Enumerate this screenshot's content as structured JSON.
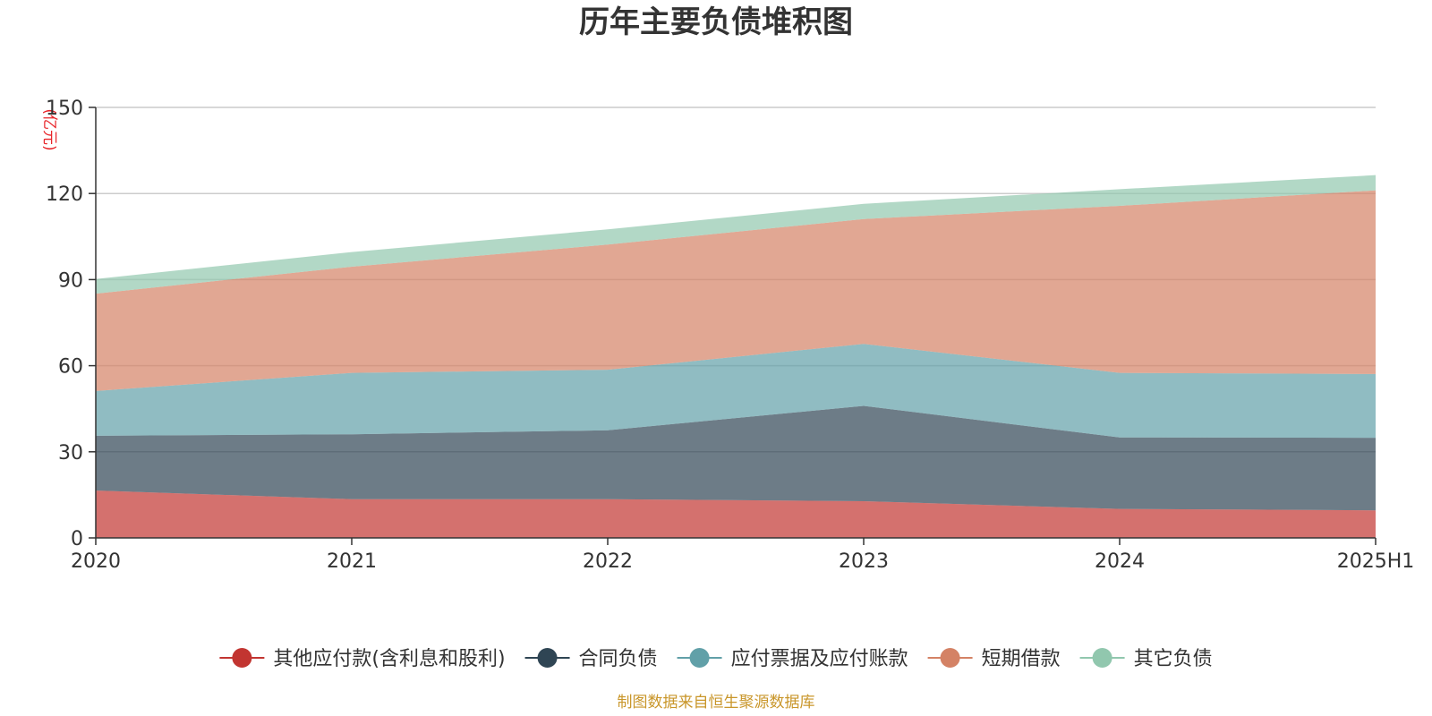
{
  "chart_data": {
    "type": "area",
    "stacked": true,
    "title": "历年主要负债堆积图",
    "unit": "(亿元)",
    "x": [
      "2020",
      "2021",
      "2022",
      "2023",
      "2024",
      "2025H1"
    ],
    "series": [
      {
        "name": "其他应付款(含利息和股利)",
        "color": "#c23531",
        "values": [
          16.5,
          13.5,
          13.5,
          12.8,
          10.1,
          9.6
        ]
      },
      {
        "name": "合同负债",
        "color": "#2f4554",
        "values": [
          19.1,
          22.6,
          24.0,
          33.2,
          24.9,
          25.3
        ]
      },
      {
        "name": "应付票据及应付账款",
        "color": "#61a0a8",
        "values": [
          15.6,
          21.4,
          21.1,
          21.6,
          22.5,
          22.2
        ]
      },
      {
        "name": "短期借款",
        "color": "#d48265",
        "values": [
          33.9,
          37.0,
          43.6,
          43.5,
          58.2,
          64.0
        ]
      },
      {
        "name": "其它负债",
        "color": "#91c7ae",
        "values": [
          5.1,
          5.1,
          5.3,
          5.3,
          5.8,
          5.3
        ]
      }
    ],
    "ylim": [
      0,
      150
    ],
    "yticks": [
      0,
      30,
      60,
      90,
      120,
      150
    ],
    "grid": true,
    "legend_position": "bottom",
    "source": "制图数据来自恒生聚源数据库"
  }
}
